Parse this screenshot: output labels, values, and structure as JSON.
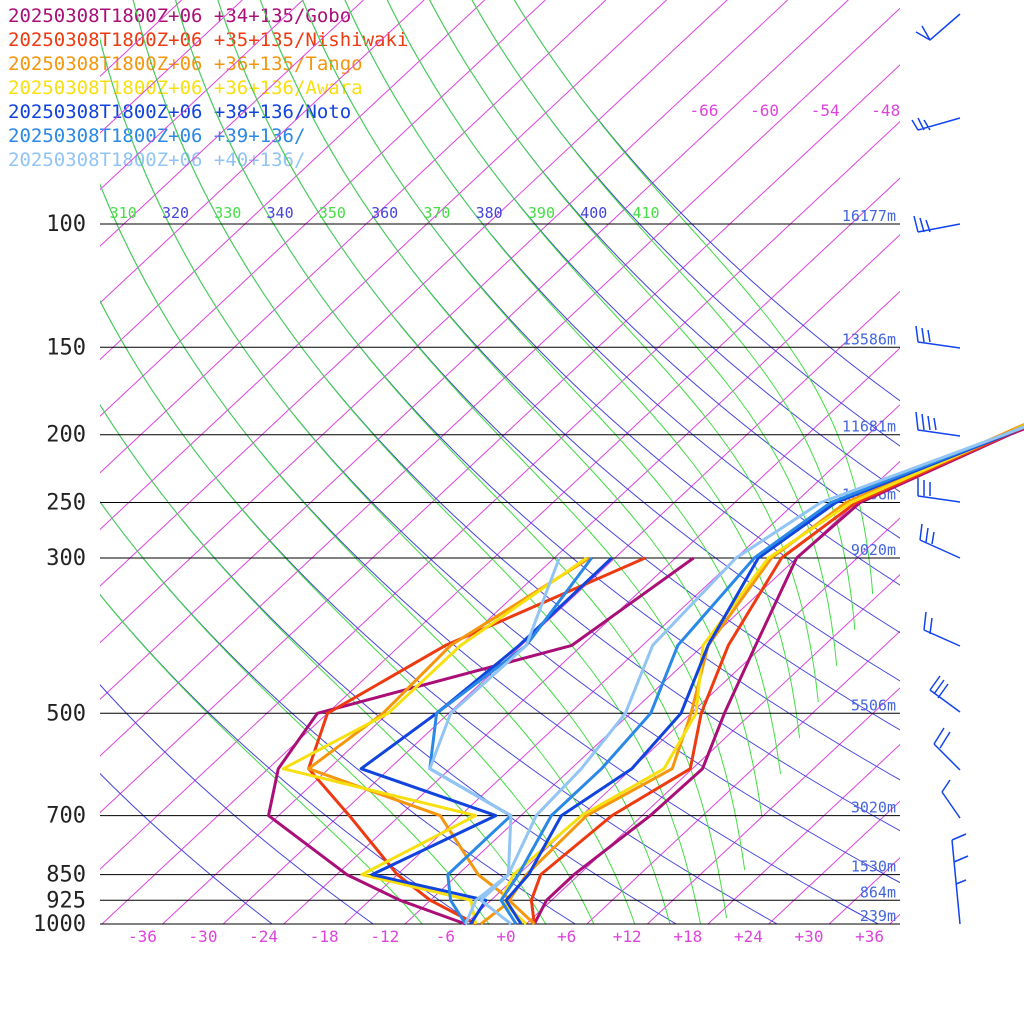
{
  "chart_data": {
    "type": "line",
    "title": "",
    "xlabel": "",
    "ylabel": "",
    "colors": {
      "isobar": "#000000",
      "isotherm": "#dd44dd",
      "theta": "#4444dd",
      "theta_e": "#44dd44",
      "height_label": "#4466dd",
      "wind": "#1144ee"
    },
    "x_ticks": [
      "-36",
      "-30",
      "-24",
      "-18",
      "-12",
      "-6",
      "+0",
      "+6",
      "+12",
      "+18",
      "+24",
      "+30",
      "+36"
    ],
    "xlim": [
      -40,
      40
    ],
    "p_levels": [
      100,
      150,
      200,
      250,
      300,
      500,
      700,
      850,
      925,
      1000
    ],
    "height_labels": [
      {
        "p": 100,
        "label": "16177m"
      },
      {
        "p": 150,
        "label": "13586m"
      },
      {
        "p": 200,
        "label": "11681m"
      },
      {
        "p": 250,
        "label": "10206m"
      },
      {
        "p": 300,
        "label": "9020m"
      },
      {
        "p": 500,
        "label": "5506m"
      },
      {
        "p": 700,
        "label": "3020m"
      },
      {
        "p": 850,
        "label": "1530m"
      },
      {
        "p": 925,
        "label": "864m"
      },
      {
        "p": 1000,
        "label": "239m"
      }
    ],
    "upper_isotherm_labels": [
      "-66",
      "-60",
      "-54",
      "-48"
    ],
    "theta_labels": [
      "310",
      "320",
      "330",
      "340",
      "350",
      "360",
      "370",
      "380",
      "390",
      "400",
      "410"
    ],
    "series": [
      {
        "name": "20250308T1800Z+06 +34+135/Gobo",
        "color": "#aa0f77",
        "temp": [
          [
            1000,
            2.8
          ],
          [
            925,
            1.5
          ],
          [
            850,
            1.5
          ],
          [
            700,
            2.8
          ],
          [
            600,
            3
          ],
          [
            500,
            -0.7
          ],
          [
            400,
            -4.8
          ],
          [
            300,
            -10
          ],
          [
            250,
            -9.6
          ],
          [
            200,
            -2
          ],
          [
            170,
            5
          ],
          [
            150,
            4.5
          ],
          [
            130,
            3
          ],
          [
            100,
            4.5
          ],
          [
            70,
            15
          ],
          [
            60,
            27
          ]
        ],
        "dew": [
          [
            1000,
            -4
          ],
          [
            925,
            -13
          ],
          [
            850,
            -21
          ],
          [
            700,
            -35
          ],
          [
            600,
            -39
          ],
          [
            500,
            -41
          ],
          [
            400,
            -23
          ],
          [
            300,
            -20.2
          ]
        ]
      },
      {
        "name": "20250308T1800Z+06 +35+135/Nishiwaki",
        "color": "#ee3a10",
        "temp": [
          [
            1000,
            2.8
          ],
          [
            925,
            0
          ],
          [
            850,
            -1.8
          ],
          [
            700,
            -1
          ],
          [
            600,
            1.8
          ],
          [
            500,
            -3
          ],
          [
            400,
            -7.5
          ],
          [
            300,
            -11.5
          ],
          [
            250,
            -10
          ],
          [
            200,
            -2.2
          ],
          [
            170,
            3.5
          ],
          [
            150,
            3
          ],
          [
            130,
            1
          ],
          [
            100,
            2
          ],
          [
            70,
            10
          ],
          [
            60,
            26
          ]
        ],
        "dew": [
          [
            1000,
            -3
          ],
          [
            925,
            -10
          ],
          [
            850,
            -16
          ],
          [
            700,
            -27
          ],
          [
            600,
            -36
          ],
          [
            500,
            -40
          ],
          [
            400,
            -35.5
          ],
          [
            300,
            -25
          ]
        ]
      },
      {
        "name": "20250308T1800Z+06 +36+135/Tango",
        "color": "#f4960e",
        "temp": [
          [
            1000,
            2.8
          ],
          [
            925,
            -2.2
          ],
          [
            850,
            -3.2
          ],
          [
            700,
            -3.5
          ],
          [
            600,
            0
          ],
          [
            500,
            -4
          ],
          [
            400,
            -9.5
          ],
          [
            300,
            -12.5
          ],
          [
            250,
            -11
          ],
          [
            200,
            -2.8
          ],
          [
            170,
            3
          ],
          [
            150,
            2.5
          ],
          [
            130,
            0.5
          ],
          [
            100,
            1.5
          ],
          [
            70,
            9
          ],
          [
            60,
            25
          ]
        ],
        "dew": [
          [
            1000,
            -2.5
          ],
          [
            925,
            -2
          ],
          [
            850,
            -8
          ],
          [
            700,
            -18
          ],
          [
            600,
            -36
          ],
          [
            500,
            -34.5
          ],
          [
            400,
            -35
          ],
          [
            300,
            -30.5
          ]
        ]
      },
      {
        "name": "20250308T1800Z+06 +36+136/Awara",
        "color": "#f8e010",
        "temp": [
          [
            1000,
            2
          ],
          [
            925,
            -3
          ],
          [
            850,
            -4.5
          ],
          [
            700,
            -4
          ],
          [
            600,
            -0.8
          ],
          [
            500,
            -3.5
          ],
          [
            400,
            -10
          ],
          [
            300,
            -12.8
          ],
          [
            250,
            -10.5
          ],
          [
            200,
            -2.5
          ],
          [
            170,
            3
          ],
          [
            150,
            2
          ],
          [
            130,
            0
          ],
          [
            100,
            1.5
          ],
          [
            70,
            10
          ],
          [
            60,
            24
          ]
        ],
        "dew": [
          [
            1000,
            -3
          ],
          [
            925,
            -6
          ],
          [
            850,
            -19.5
          ],
          [
            700,
            -14.5
          ],
          [
            600,
            -38.5
          ],
          [
            500,
            -34
          ],
          [
            400,
            -34
          ],
          [
            300,
            -30.8
          ]
        ]
      },
      {
        "name": "20250308T1800Z+06 +38+136/Noto",
        "color": "#1144dd",
        "temp": [
          [
            1000,
            1.5
          ],
          [
            925,
            -2.5
          ],
          [
            850,
            -3
          ],
          [
            700,
            -6
          ],
          [
            600,
            -4
          ],
          [
            500,
            -5
          ],
          [
            400,
            -9.5
          ],
          [
            300,
            -13.8
          ],
          [
            250,
            -12
          ],
          [
            200,
            -2.3
          ],
          [
            170,
            3.5
          ],
          [
            150,
            2.5
          ],
          [
            130,
            -0.5
          ],
          [
            100,
            4.5
          ],
          [
            70,
            13
          ],
          [
            60,
            23
          ]
        ],
        "dew": [
          [
            1000,
            -3.5
          ],
          [
            925,
            -4.5
          ],
          [
            850,
            -18.5
          ],
          [
            700,
            -12.5
          ],
          [
            600,
            -30.8
          ],
          [
            500,
            -29.2
          ],
          [
            400,
            -28.2
          ],
          [
            300,
            -28.3
          ]
        ]
      },
      {
        "name": "20250308T1800Z+06 +39+136/",
        "color": "#2a88e6",
        "temp": [
          [
            1000,
            1
          ],
          [
            925,
            -3
          ],
          [
            850,
            -4
          ],
          [
            700,
            -7
          ],
          [
            600,
            -7
          ],
          [
            500,
            -8
          ],
          [
            400,
            -12.5
          ],
          [
            300,
            -14.2
          ],
          [
            250,
            -12.5
          ],
          [
            200,
            -2.5
          ],
          [
            170,
            4.5
          ],
          [
            150,
            4
          ],
          [
            130,
            2
          ],
          [
            100,
            7
          ],
          [
            70,
            15
          ],
          [
            60,
            22
          ]
        ],
        "dew": [
          [
            1000,
            -4
          ],
          [
            925,
            -8
          ],
          [
            850,
            -11
          ],
          [
            700,
            -11
          ],
          [
            600,
            -24
          ],
          [
            500,
            -29.2
          ],
          [
            400,
            -27.5
          ],
          [
            300,
            -30.3
          ]
        ]
      },
      {
        "name": "20250308T1800Z+06 +40+136/",
        "color": "#92c4f4",
        "temp": [
          [
            1000,
            0.5
          ],
          [
            925,
            -5
          ],
          [
            850,
            -5
          ],
          [
            700,
            -8.5
          ],
          [
            600,
            -9
          ],
          [
            500,
            -10.5
          ],
          [
            400,
            -15
          ],
          [
            300,
            -16
          ],
          [
            250,
            -13.5
          ],
          [
            200,
            -2.5
          ],
          [
            170,
            5
          ],
          [
            150,
            5.5
          ],
          [
            130,
            4.5
          ],
          [
            100,
            10
          ],
          [
            70,
            19.5
          ],
          [
            60,
            24
          ]
        ],
        "dew": [
          [
            1000,
            -4
          ],
          [
            925,
            -5.5
          ],
          [
            850,
            -5
          ],
          [
            700,
            -11
          ],
          [
            600,
            -24
          ],
          [
            500,
            -27.8
          ],
          [
            400,
            -27.5
          ],
          [
            300,
            -33.5
          ]
        ]
      }
    ]
  }
}
